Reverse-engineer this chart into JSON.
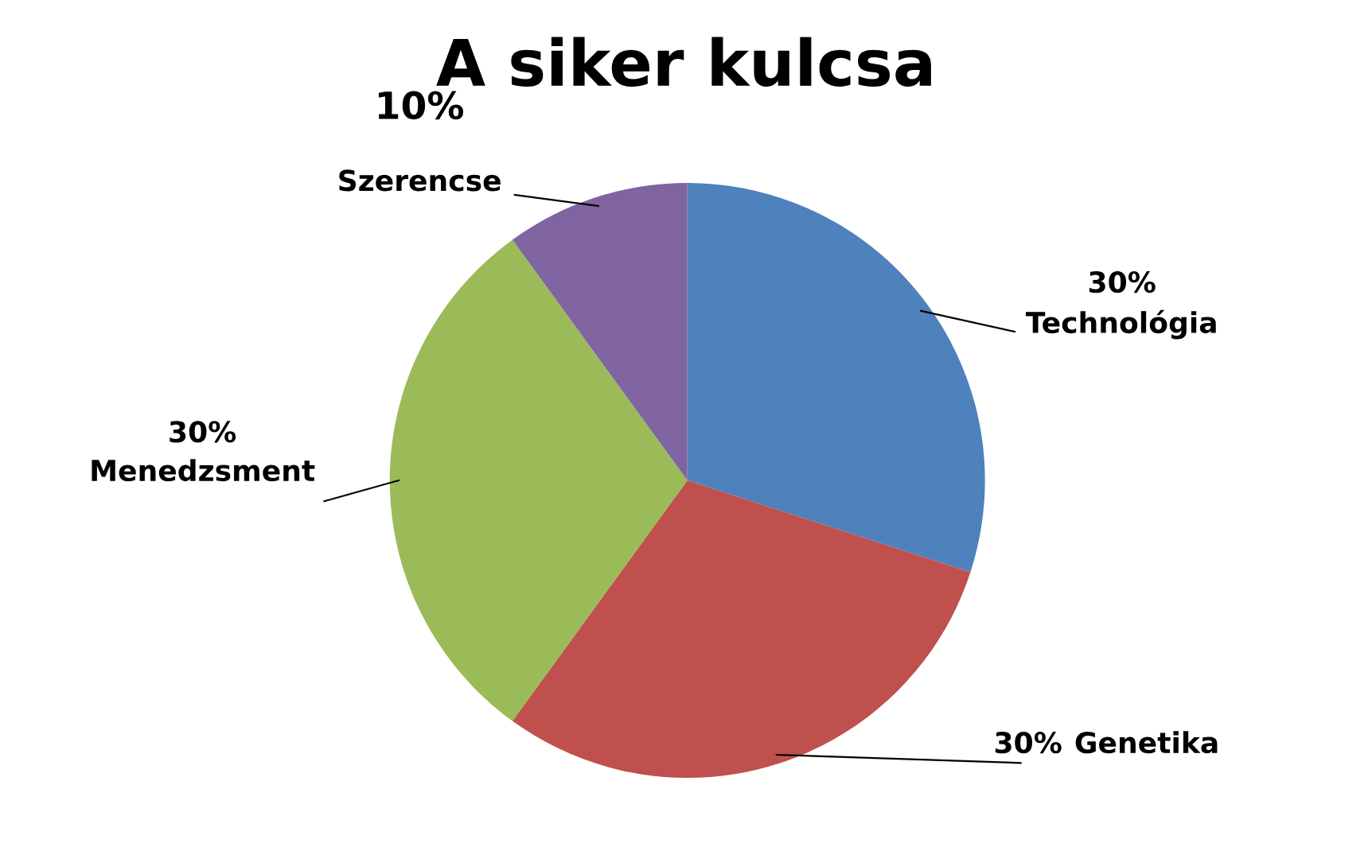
{
  "chart_data": {
    "type": "pie",
    "title": "A siker kulcsa",
    "categories": [
      "Technológia",
      "Genetika",
      "Menedzsment",
      "Szerencse"
    ],
    "values": [
      30,
      30,
      30,
      10
    ],
    "colors": [
      "#4f81bd",
      "#c0504d",
      "#9bbb59",
      "#8064a2"
    ],
    "value_labels": [
      "30%",
      "30%",
      "30%",
      "10%"
    ],
    "legend": false
  }
}
